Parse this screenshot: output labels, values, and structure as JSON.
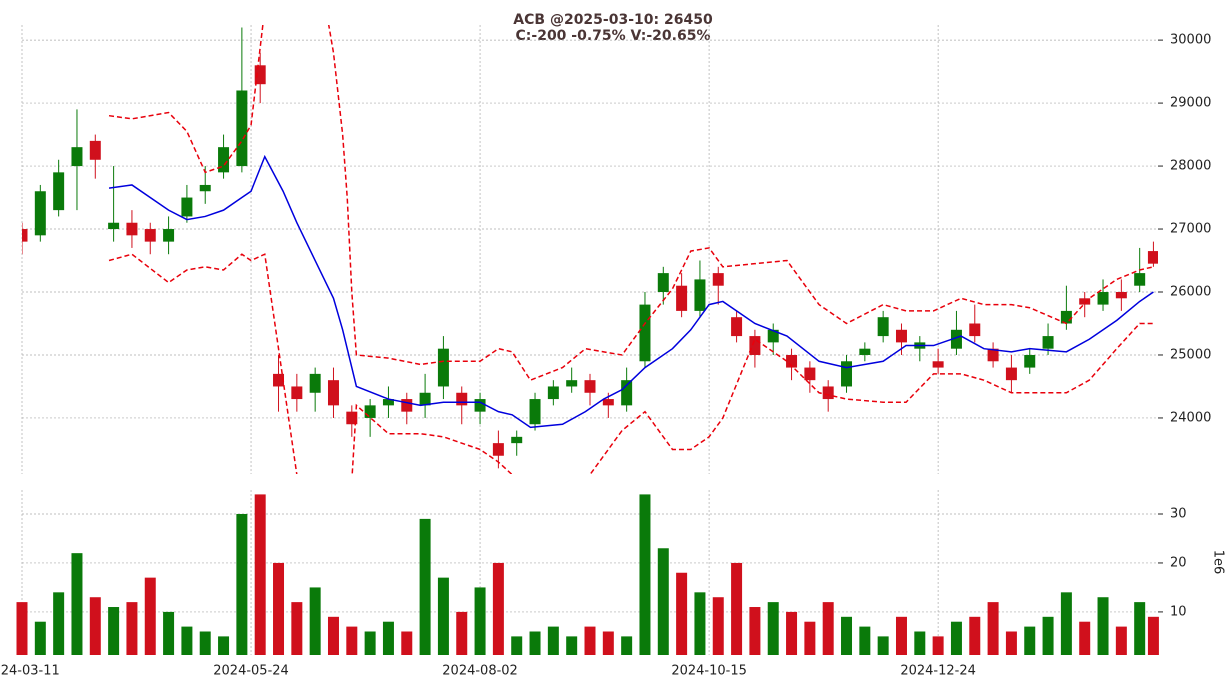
{
  "chart_data": [
    {
      "type": "candlestick",
      "title": "ACB @2025-03-10: 26450",
      "subtitle": "C:-200 -0.75% V:-20.65%",
      "up_color": "#0a7a0a",
      "down_color": "#d0101c",
      "xlim": [
        0,
        248
      ],
      "xticks": [
        {
          "value": 0,
          "label": "2024-03-11"
        },
        {
          "value": 50,
          "label": "2024-05-24"
        },
        {
          "value": 100,
          "label": "2024-08-02"
        },
        {
          "value": 150,
          "label": "2024-10-15"
        },
        {
          "value": 200,
          "label": "2024-12-24"
        }
      ],
      "ylim": [
        23110,
        30240
      ],
      "yticks": [
        24000,
        25000,
        26000,
        27000,
        28000,
        29000,
        30000
      ],
      "grid": true,
      "x": [
        0,
        4,
        8,
        12,
        16,
        20,
        24,
        28,
        32,
        36,
        40,
        44,
        48,
        52,
        56,
        60,
        64,
        68,
        72,
        76,
        80,
        84,
        88,
        92,
        96,
        100,
        104,
        108,
        112,
        116,
        120,
        124,
        128,
        132,
        136,
        140,
        144,
        148,
        152,
        156,
        160,
        164,
        168,
        172,
        176,
        180,
        184,
        188,
        192,
        196,
        200,
        204,
        208,
        212,
        216,
        220,
        224,
        228,
        232,
        236,
        240,
        244,
        247
      ],
      "open": [
        27000,
        26900,
        27300,
        28000,
        28400,
        27000,
        27100,
        27000,
        26800,
        27200,
        27600,
        27900,
        28000,
        29600,
        24700,
        24500,
        24400,
        24600,
        24100,
        24000,
        24200,
        24300,
        24200,
        24500,
        24400,
        24100,
        23600,
        23600,
        23900,
        24300,
        24500,
        24600,
        24300,
        24200,
        24900,
        26000,
        26100,
        25700,
        26300,
        25600,
        25300,
        25200,
        25000,
        24800,
        24500,
        24500,
        25000,
        25300,
        25400,
        25100,
        24900,
        25100,
        25500,
        25100,
        24800,
        24800,
        25100,
        25500,
        25900,
        25800,
        26000,
        26100,
        26650
      ],
      "high": [
        27100,
        27700,
        28100,
        28900,
        28500,
        28000,
        27300,
        27100,
        27200,
        27700,
        28000,
        28500,
        30200,
        29800,
        25000,
        24700,
        24800,
        24800,
        24200,
        24300,
        24500,
        24400,
        24700,
        25300,
        24500,
        24400,
        23800,
        23800,
        24400,
        24600,
        24800,
        24700,
        24400,
        24800,
        26000,
        26400,
        26300,
        26500,
        26400,
        25700,
        25400,
        25500,
        25100,
        24900,
        24600,
        25000,
        25200,
        25700,
        25500,
        25300,
        25100,
        25700,
        25800,
        25200,
        25000,
        25100,
        25500,
        26100,
        26000,
        26200,
        26200,
        26700,
        26800
      ],
      "low": [
        26600,
        26800,
        27200,
        27300,
        27800,
        26800,
        26700,
        26600,
        26600,
        27100,
        27400,
        27800,
        27900,
        29000,
        24100,
        24100,
        24100,
        24000,
        23700,
        23700,
        24000,
        23900,
        24000,
        24300,
        23900,
        23900,
        23200,
        23400,
        23800,
        24200,
        24400,
        24200,
        24000,
        24100,
        24800,
        25800,
        25600,
        25600,
        25800,
        25200,
        24800,
        25000,
        24600,
        24400,
        24100,
        24400,
        24900,
        25200,
        25000,
        24900,
        24700,
        25000,
        25200,
        24800,
        24400,
        24700,
        25000,
        25400,
        25600,
        25700,
        25700,
        26000,
        26400
      ],
      "close": [
        26800,
        27600,
        27900,
        28300,
        28100,
        27100,
        26900,
        26800,
        27000,
        27500,
        27700,
        28300,
        29200,
        29300,
        24500,
        24300,
        24700,
        24200,
        23900,
        24200,
        24300,
        24100,
        24400,
        25100,
        24200,
        24300,
        23400,
        23700,
        24300,
        24500,
        24600,
        24400,
        24200,
        24600,
        25800,
        26300,
        25700,
        26200,
        26100,
        25300,
        25000,
        25400,
        24800,
        24600,
        24300,
        24900,
        25100,
        25600,
        25200,
        25200,
        24800,
        25400,
        25300,
        24900,
        24600,
        25000,
        25300,
        25700,
        25800,
        26000,
        25900,
        26300,
        26450
      ],
      "bands": {
        "x": [
          19,
          24,
          32,
          36,
          40,
          44,
          48,
          50,
          53,
          57,
          60,
          64,
          68,
          70,
          71,
          72,
          73,
          80,
          87,
          92,
          100,
          104,
          107,
          111,
          118,
          123,
          127,
          131,
          136,
          142,
          146,
          150,
          153,
          160,
          167,
          174,
          180,
          188,
          193,
          199,
          205,
          210,
          216,
          220,
          228,
          233,
          239,
          244,
          247
        ],
        "series": [
          {
            "color": "#e8000b",
            "dashed": true,
            "values": [
              28800,
              28750,
              28850,
              28550,
              27900,
              28000,
              28400,
              28650,
              30500,
              31500,
              31800,
              31500,
              29800,
              28500,
              27500,
              26000,
              25000,
              24950,
              24850,
              24900,
              24900,
              25100,
              25050,
              24600,
              24800,
              25100,
              25050,
              25000,
              25500,
              26050,
              26650,
              26700,
              26400,
              26450,
              26500,
              25800,
              25500,
              25800,
              25700,
              25700,
              25900,
              25800,
              25800,
              25750,
              25500,
              25900,
              26200,
              26350,
              26400
            ]
          },
          {
            "color": "#0000dd",
            "dashed": false,
            "values": [
              27650,
              27700,
              27300,
              27150,
              27200,
              27300,
              27500,
              27600,
              28150,
              27600,
              27100,
              26500,
              25900,
              25400,
              25100,
              24800,
              24500,
              24300,
              24200,
              24250,
              24250,
              24100,
              24050,
              23850,
              23900,
              24100,
              24300,
              24450,
              24800,
              25100,
              25400,
              25800,
              25850,
              25500,
              25300,
              24900,
              24800,
              24900,
              25150,
              25150,
              25300,
              25100,
              25050,
              25100,
              25050,
              25250,
              25550,
              25850,
              26000
            ]
          },
          {
            "color": "#e8000b",
            "dashed": true,
            "values": [
              26500,
              26600,
              26150,
              26350,
              26400,
              26350,
              26600,
              26500,
              26600,
              24600,
              23100,
              22000,
              21900,
              22000,
              22400,
              23000,
              24200,
              23750,
              23750,
              23700,
              23500,
              23300,
              23100,
              22900,
              22800,
              23000,
              23400,
              23800,
              24100,
              23500,
              23500,
              23700,
              24000,
              25250,
              24900,
              24400,
              24300,
              24250,
              24250,
              24700,
              24700,
              24600,
              24400,
              24400,
              24400,
              24600,
              25100,
              25500,
              25500
            ]
          }
        ]
      }
    },
    {
      "type": "volume",
      "y_label": "1e6",
      "up_color": "#0a7a0a",
      "down_color": "#d0101c",
      "xlim": [
        0,
        248
      ],
      "ylim": [
        1.2,
        34.9
      ],
      "yticks": [
        10,
        20,
        30
      ],
      "grid": true,
      "x": [
        0,
        4,
        8,
        12,
        16,
        20,
        24,
        28,
        32,
        36,
        40,
        44,
        48,
        52,
        56,
        60,
        64,
        68,
        72,
        76,
        80,
        84,
        88,
        92,
        96,
        100,
        104,
        108,
        112,
        116,
        120,
        124,
        128,
        132,
        136,
        140,
        144,
        148,
        152,
        156,
        160,
        164,
        168,
        172,
        176,
        180,
        184,
        188,
        192,
        196,
        200,
        204,
        208,
        212,
        216,
        220,
        224,
        228,
        232,
        236,
        240,
        244,
        247
      ],
      "values": [
        12,
        8,
        14,
        22,
        13,
        11,
        12,
        17,
        10,
        7,
        6,
        5,
        30,
        34,
        20,
        12,
        15,
        9,
        7,
        6,
        8,
        6,
        29,
        17,
        10,
        15,
        20,
        5,
        6,
        7,
        5,
        7,
        6,
        5,
        34,
        23,
        18,
        14,
        13,
        20,
        11,
        12,
        10,
        8,
        12,
        9,
        7,
        5,
        9,
        6,
        5,
        8,
        9,
        12,
        6,
        7,
        9,
        14,
        8,
        13,
        7,
        12,
        9
      ]
    }
  ]
}
